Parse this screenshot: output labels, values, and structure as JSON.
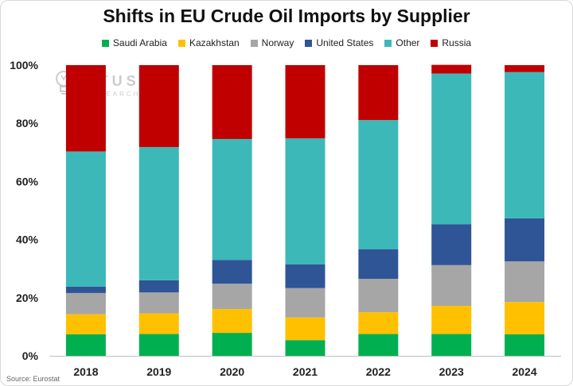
{
  "chart_data": {
    "type": "bar",
    "stacked": true,
    "title": "Shifts in EU Crude Oil Imports by Supplier",
    "categories": [
      "2018",
      "2019",
      "2020",
      "2021",
      "2022",
      "2023",
      "2024"
    ],
    "ylim": [
      0,
      100
    ],
    "y_ticks": [
      "0%",
      "20%",
      "40%",
      "60%",
      "80%",
      "100%"
    ],
    "grid": false,
    "legend_position": "top",
    "series": [
      {
        "name": "Saudi Arabia",
        "color": "#00b050",
        "values": [
          7.4,
          7.5,
          7.9,
          5.4,
          7.5,
          7.5,
          7.4
        ]
      },
      {
        "name": "Kazakhstan",
        "color": "#ffc000",
        "values": [
          6.9,
          7.1,
          8.2,
          7.8,
          7.5,
          9.7,
          11.1
        ]
      },
      {
        "name": "Norway",
        "color": "#a6a6a6",
        "values": [
          7.3,
          7.2,
          8.7,
          10.1,
          11.5,
          14.0,
          14.0
        ]
      },
      {
        "name": "United States",
        "color": "#2f5597",
        "values": [
          2.2,
          4.2,
          8.2,
          8.2,
          10.2,
          14.1,
          14.8
        ]
      },
      {
        "name": "Other",
        "color": "#3cb8b8",
        "values": [
          46.5,
          45.8,
          41.6,
          43.3,
          44.4,
          51.8,
          50.3
        ]
      },
      {
        "name": "Russia",
        "color": "#c00000",
        "values": [
          29.7,
          28.2,
          25.4,
          25.2,
          18.9,
          3.0,
          2.4
        ]
      }
    ]
  },
  "source": "Source: Eurostat",
  "watermark": {
    "word": "KATUSA",
    "sub": "RESEARCH"
  }
}
